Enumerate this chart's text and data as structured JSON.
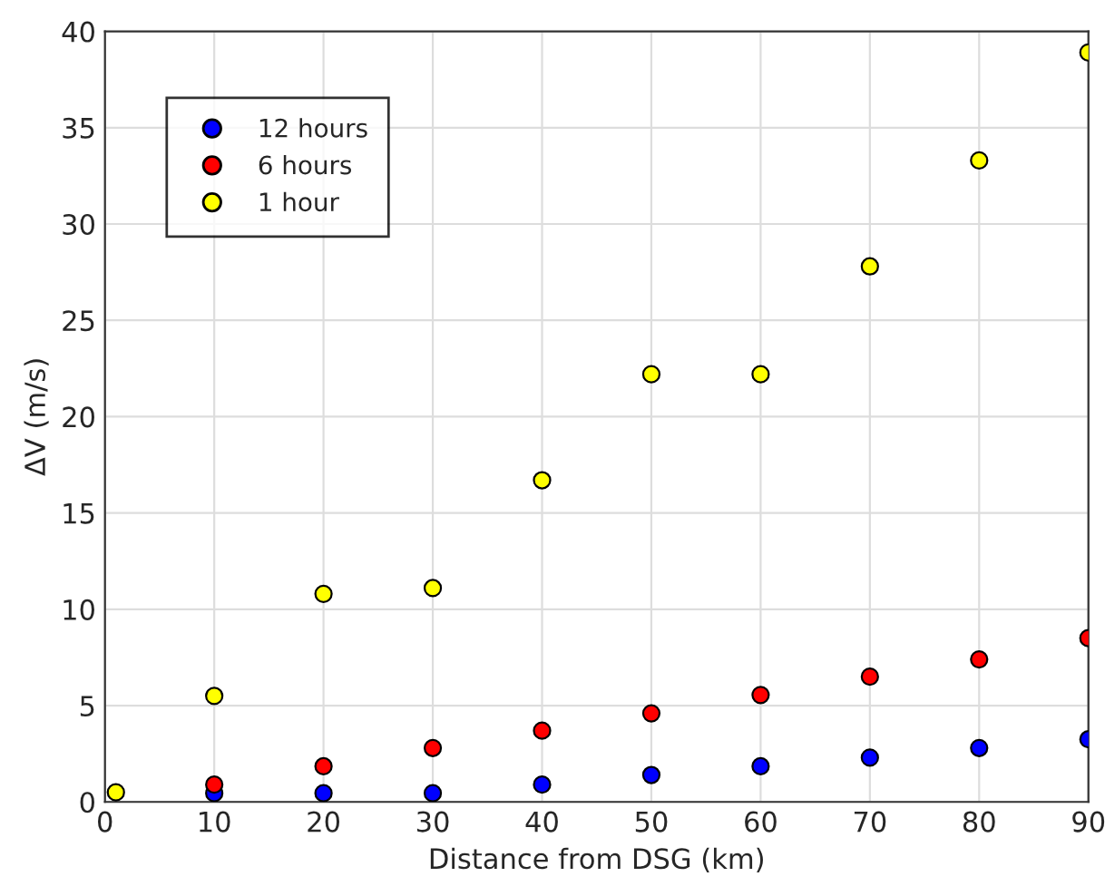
{
  "chart_data": {
    "type": "scatter",
    "xlabel": "Distance from DSG (km)",
    "ylabel": "ΔV (m/s)",
    "xlim": [
      0,
      90
    ],
    "ylim": [
      0,
      40
    ],
    "xticks": [
      0,
      10,
      20,
      30,
      40,
      50,
      60,
      70,
      80,
      90
    ],
    "yticks": [
      0,
      5,
      10,
      15,
      20,
      25,
      30,
      35,
      40
    ],
    "grid": true,
    "legend": "top left",
    "marker": "circle",
    "series": [
      {
        "name": "12 hours",
        "color": "#0000ff",
        "x": [
          10,
          20,
          30,
          40,
          50,
          60,
          70,
          80,
          90
        ],
        "values": [
          0.45,
          0.45,
          0.45,
          0.9,
          1.4,
          1.85,
          2.3,
          2.8,
          3.25
        ]
      },
      {
        "name": "6 hours",
        "color": "#ff0000",
        "x": [
          10,
          20,
          30,
          40,
          50,
          60,
          70,
          80,
          90
        ],
        "values": [
          0.9,
          1.85,
          2.8,
          3.7,
          4.6,
          5.55,
          6.5,
          7.4,
          8.5
        ]
      },
      {
        "name": "1 hour",
        "color": "#ffff00",
        "x": [
          1,
          10,
          20,
          30,
          40,
          50,
          60,
          70,
          80,
          90
        ],
        "values": [
          0.5,
          5.5,
          10.8,
          11.1,
          16.7,
          22.2,
          22.2,
          27.8,
          33.3,
          38.9
        ]
      }
    ]
  }
}
